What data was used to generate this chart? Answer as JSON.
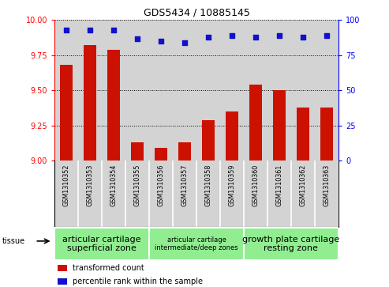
{
  "title": "GDS5434 / 10885145",
  "samples": [
    "GSM1310352",
    "GSM1310353",
    "GSM1310354",
    "GSM1310355",
    "GSM1310356",
    "GSM1310357",
    "GSM1310358",
    "GSM1310359",
    "GSM1310360",
    "GSM1310361",
    "GSM1310362",
    "GSM1310363"
  ],
  "bar_values": [
    9.68,
    9.82,
    9.79,
    9.13,
    9.09,
    9.13,
    9.29,
    9.35,
    9.54,
    9.5,
    9.38,
    9.38
  ],
  "dot_values_pct": [
    93,
    93,
    93,
    87,
    85,
    84,
    88,
    89,
    88,
    89,
    88,
    89
  ],
  "ylim_left": [
    9.0,
    10.0
  ],
  "ylim_right": [
    0,
    100
  ],
  "yticks_left": [
    9.0,
    9.25,
    9.5,
    9.75,
    10.0
  ],
  "yticks_right": [
    0,
    25,
    50,
    75,
    100
  ],
  "bar_color": "#cc1100",
  "dot_color": "#1111cc",
  "plot_bg": "#d3d3d3",
  "sample_box_bg": "#d3d3d3",
  "groups": [
    {
      "label": "articular cartilage\nsuperficial zone",
      "start": 0,
      "end": 4,
      "color": "#90EE90",
      "fontsize": 8
    },
    {
      "label": "articular cartilage\nintermediate/deep zones",
      "start": 4,
      "end": 8,
      "color": "#90EE90",
      "fontsize": 6
    },
    {
      "label": "growth plate cartilage\nresting zone",
      "start": 8,
      "end": 12,
      "color": "#90EE90",
      "fontsize": 8
    }
  ],
  "tissue_label": "tissue",
  "legend_bar_label": "transformed count",
  "legend_dot_label": "percentile rank within the sample",
  "grid_color": "black",
  "title_fontsize": 9
}
